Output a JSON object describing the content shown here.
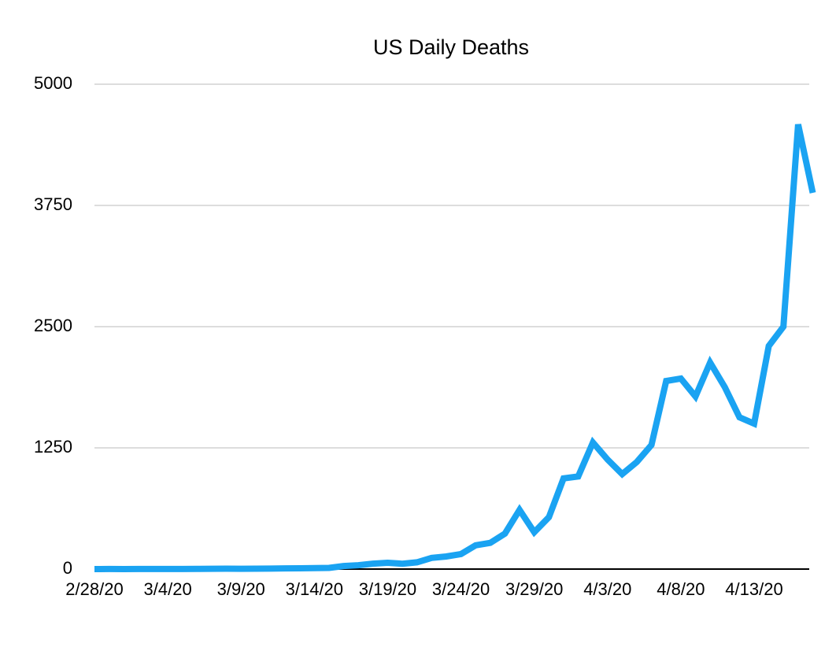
{
  "chart_data": {
    "type": "line",
    "title": "US Daily Deaths",
    "categories": [
      "2/28/20",
      null,
      null,
      null,
      null,
      "3/4/20",
      null,
      null,
      null,
      null,
      "3/9/20",
      null,
      null,
      null,
      null,
      "3/14/20",
      null,
      null,
      null,
      null,
      "3/19/20",
      null,
      null,
      null,
      null,
      "3/24/20",
      null,
      null,
      null,
      null,
      "3/29/20",
      null,
      null,
      null,
      null,
      "4/3/20",
      null,
      null,
      null,
      null,
      "4/8/20",
      null,
      null,
      null,
      null,
      "4/13/20",
      null,
      null,
      null,
      null
    ],
    "series": [
      {
        "name": "US Daily Deaths",
        "color": "#1aa3f2",
        "values": [
          0,
          1,
          0,
          1,
          1,
          1,
          1,
          2,
          3,
          4,
          3,
          4,
          5,
          7,
          8,
          10,
          12,
          32,
          40,
          56,
          65,
          55,
          70,
          115,
          130,
          155,
          245,
          270,
          365,
          610,
          380,
          535,
          935,
          955,
          1305,
          1130,
          980,
          1105,
          1280,
          1940,
          1965,
          1780,
          2130,
          1875,
          1565,
          1500,
          2300,
          2500,
          4585,
          3880
        ]
      }
    ],
    "ylim": [
      0,
      5000
    ],
    "yticks": [
      0,
      1250,
      2500,
      3750,
      5000
    ],
    "grid": true
  }
}
